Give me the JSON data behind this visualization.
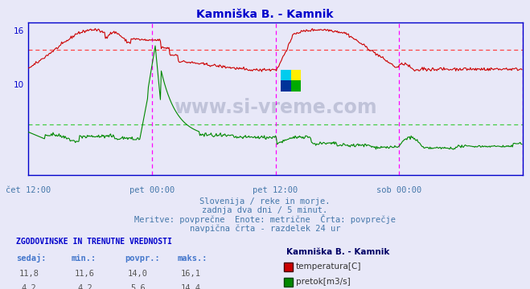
{
  "title": "Kamniška B. - Kamnik",
  "title_color": "#0000cc",
  "bg_color": "#e8e8f8",
  "plot_bg_color": "#e8e8f8",
  "temp_color": "#cc0000",
  "flow_color": "#008800",
  "avg_temp_color": "#ff6666",
  "avg_flow_color": "#44bb44",
  "vline_color": "#ff00ff",
  "axis_color": "#0000cc",
  "text_color": "#4477aa",
  "label_color": "#4477aa",
  "n_points": 576,
  "ylim": [
    0,
    17
  ],
  "xtick_positions": [
    0,
    144,
    288,
    432
  ],
  "xtick_labels": [
    "čet 12:00",
    "pet 00:00",
    "pet 12:00",
    "sob 00:00"
  ],
  "vline_positions": [
    144,
    288,
    432,
    576
  ],
  "avg_temp": 14.0,
  "avg_flow": 5.6,
  "watermark": "www.si-vreme.com",
  "subtitle1": "Slovenija / reke in morje.",
  "subtitle2": "zadnja dva dni / 5 minut.",
  "subtitle3": "Meritve: povprečne  Enote: metrične  Črta: povprečje",
  "subtitle4": "navpična črta - razdelek 24 ur",
  "hist_title": "ZGODOVINSKE IN TRENUTNE VREDNOSTI",
  "col_headers": [
    "sedaj:",
    "min.:",
    "povpr.:",
    "maks.:"
  ],
  "temp_vals": [
    "11,8",
    "11,6",
    "14,0",
    "16,1"
  ],
  "flow_vals": [
    "4,2",
    "4,2",
    "5,6",
    "14,4"
  ],
  "legend_station": "Kamniška B. - Kamnik",
  "leg_temp": "temperatura[C]",
  "leg_flow": "pretok[m3/s]"
}
